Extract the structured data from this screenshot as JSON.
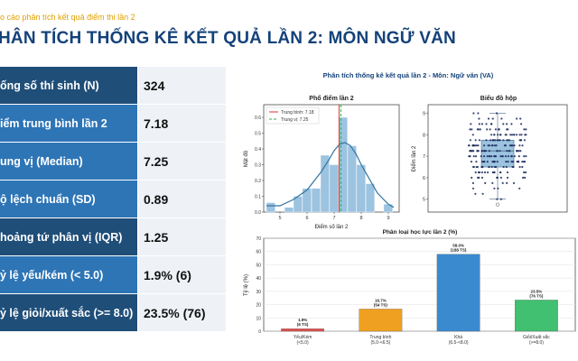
{
  "header": {
    "breadcrumb": "o cáo phân tích kết quả điểm thi lần 2",
    "title": "HÂN TÍCH THỐNG KÊ KẾT QUẢ LẦN 2: MÔN NGỮ VĂN"
  },
  "stats": [
    {
      "label": "ống số thí sinh (N)",
      "value": "324",
      "color": "#1f4e79"
    },
    {
      "label": "iểm trung bình lần 2",
      "value": "7.18",
      "color": "#2e75b6"
    },
    {
      "label": "ung vị (Median)",
      "value": "7.25",
      "color": "#2e75b6"
    },
    {
      "label": "ộ lệch chuẩn (SD)",
      "value": "0.89",
      "color": "#2e75b6"
    },
    {
      "label": "hoảng tứ phân vị (IQR)",
      "value": "1.25",
      "color": "#1f4e79"
    },
    {
      "label": "ỷ lệ yếu/kém (< 5.0)",
      "value": "1.9% (6)",
      "color": "#2e75b6"
    },
    {
      "label": "ỷ lệ giỏi/xuất sắc (>= 8.0)",
      "value": "23.5% (76)",
      "color": "#1f4e79"
    }
  ],
  "chart_data": [
    {
      "type": "histogram",
      "suptitle": "Phân tích thống kê kết quả lần 2 - Môn: Ngữ văn (VA)",
      "title": "Phổ điểm lần 2",
      "xlabel": "Điểm số lần 2",
      "ylabel": "Mật độ",
      "xlim": [
        4.4,
        9.4
      ],
      "ylim": [
        0,
        0.68
      ],
      "xticks": [
        5,
        6,
        7,
        8,
        9
      ],
      "yticks": [
        0.0,
        0.1,
        0.2,
        0.3,
        0.4,
        0.5,
        0.6
      ],
      "bin_edges": [
        4.5,
        4.83,
        5.17,
        5.5,
        5.83,
        6.17,
        6.5,
        6.83,
        7.17,
        7.5,
        7.83,
        8.17,
        8.5,
        8.83,
        9.17
      ],
      "densities": [
        0.06,
        0.0,
        0.03,
        0.1,
        0.15,
        0.15,
        0.36,
        0.3,
        0.6,
        0.42,
        0.3,
        0.18,
        0.0,
        0.05
      ],
      "kde_x": [
        4.5,
        5.0,
        5.5,
        6.0,
        6.5,
        6.8,
        7.0,
        7.2,
        7.4,
        7.6,
        7.8,
        8.0,
        8.3,
        8.6,
        9.0,
        9.2
      ],
      "kde_y": [
        0.04,
        0.04,
        0.08,
        0.14,
        0.25,
        0.33,
        0.39,
        0.43,
        0.44,
        0.42,
        0.37,
        0.3,
        0.21,
        0.12,
        0.05,
        0.03
      ],
      "mean": 7.18,
      "median": 7.25,
      "legend": [
        "Trung bình: 7.18",
        "Trung vị: 7.25"
      ],
      "legend_position": "top-left",
      "colors": {
        "bars": "#9cc3e0",
        "kde": "#3274a1",
        "mean": "#e03030",
        "median": "#3aaa50"
      }
    },
    {
      "type": "box",
      "title": "Biểu đồ hộp",
      "ylabel": "Điểm lần 2",
      "ylim": [
        4.4,
        9.4
      ],
      "yticks": [
        5,
        6,
        7,
        8,
        9
      ],
      "min": 5.0,
      "q1": 6.5,
      "median": 7.25,
      "q3": 7.75,
      "max": 9.0,
      "outliers": [
        4.75
      ],
      "colors": {
        "box": "#9cc3e0",
        "points": "#1a2a5a"
      }
    },
    {
      "type": "bar",
      "title": "Phân loại học lực lần 2 (%)",
      "ylabel": "Tỷ lệ (%)",
      "ylim": [
        0,
        70
      ],
      "yticks": [
        0,
        10,
        20,
        30,
        40,
        50,
        60,
        70
      ],
      "categories": [
        [
          "Yếu/Kém",
          "(<5.0)"
        ],
        [
          "Trung bình",
          "(5.0-<6.5)"
        ],
        [
          "Khá",
          "(6.5-<8.0)"
        ],
        [
          "Giỏi/Xuất sắc",
          "(>=8.0)"
        ]
      ],
      "values": [
        1.9,
        16.7,
        58.0,
        23.5
      ],
      "labels": [
        [
          "1.9%",
          "(6 TS)"
        ],
        [
          "16.7%",
          "(54 TS)"
        ],
        [
          "58.0%",
          "(188 TS)"
        ],
        [
          "23.5%",
          "(76 TS)"
        ]
      ],
      "colors": [
        "#e05050",
        "#f0a020",
        "#3a8ad0",
        "#40c070"
      ]
    }
  ]
}
